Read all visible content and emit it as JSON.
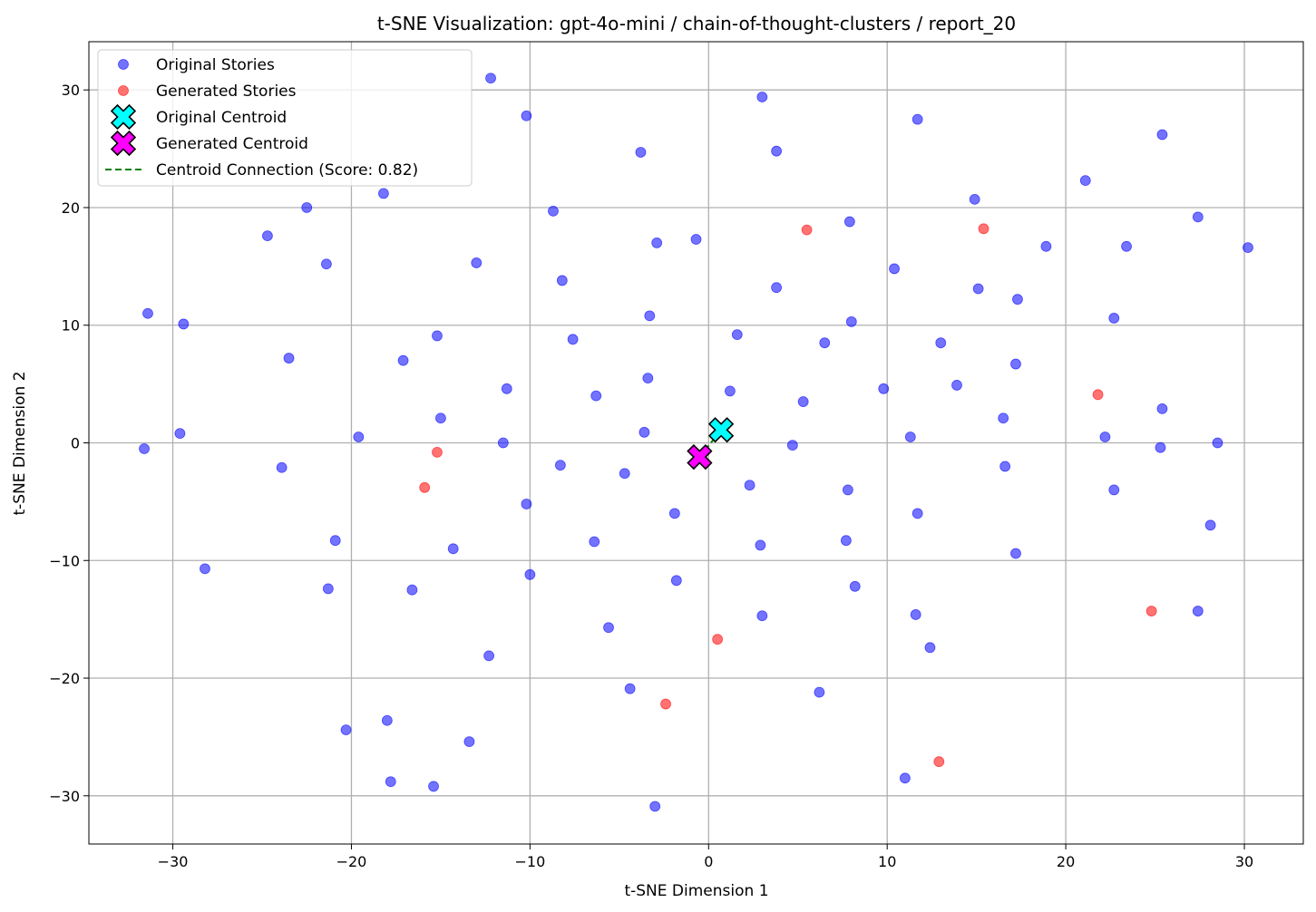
{
  "chart_data": {
    "type": "scatter",
    "title": "t-SNE Visualization: gpt-4o-mini / chain-of-thought-clusters / report_20",
    "xlabel": "t-SNE Dimension 1",
    "ylabel": "t-SNE Dimension 2",
    "xlim": [
      -34.7,
      33.3
    ],
    "ylim": [
      -34.1,
      34.1
    ],
    "xticks": [
      -30,
      -20,
      -10,
      0,
      10,
      20,
      30
    ],
    "yticks": [
      -30,
      -20,
      -10,
      0,
      10,
      20,
      30
    ],
    "xtick_labels": [
      "−30",
      "−20",
      "−10",
      "0",
      "10",
      "20",
      "30"
    ],
    "ytick_labels": [
      "−30",
      "−20",
      "−10",
      "0",
      "10",
      "20",
      "30"
    ],
    "grid": true,
    "legend_position": "top-left",
    "series": [
      {
        "name": "Original Stories",
        "color": "#0000ff",
        "points": [
          [
            -12.2,
            31.0
          ],
          [
            3.0,
            29.4
          ],
          [
            -10.2,
            27.8
          ],
          [
            11.7,
            27.5
          ],
          [
            -3.8,
            24.7
          ],
          [
            3.8,
            24.8
          ],
          [
            25.4,
            26.2
          ],
          [
            21.1,
            22.3
          ],
          [
            -18.2,
            21.2
          ],
          [
            14.9,
            20.7
          ],
          [
            -22.5,
            20.0
          ],
          [
            -8.7,
            19.7
          ],
          [
            7.9,
            18.8
          ],
          [
            27.4,
            19.2
          ],
          [
            -24.7,
            17.6
          ],
          [
            -2.9,
            17.0
          ],
          [
            -0.7,
            17.3
          ],
          [
            18.9,
            16.7
          ],
          [
            23.4,
            16.7
          ],
          [
            30.2,
            16.6
          ],
          [
            -21.4,
            15.2
          ],
          [
            -13.0,
            15.3
          ],
          [
            10.4,
            14.8
          ],
          [
            -8.2,
            13.8
          ],
          [
            3.8,
            13.2
          ],
          [
            15.1,
            13.1
          ],
          [
            17.3,
            12.2
          ],
          [
            -31.4,
            11.0
          ],
          [
            -29.4,
            10.1
          ],
          [
            -3.3,
            10.8
          ],
          [
            8.0,
            10.3
          ],
          [
            22.7,
            10.6
          ],
          [
            -15.2,
            9.1
          ],
          [
            -7.6,
            8.8
          ],
          [
            1.6,
            9.2
          ],
          [
            6.5,
            8.5
          ],
          [
            13.0,
            8.5
          ],
          [
            -23.5,
            7.2
          ],
          [
            -17.1,
            7.0
          ],
          [
            17.2,
            6.7
          ],
          [
            -11.3,
            4.6
          ],
          [
            -6.3,
            4.0
          ],
          [
            -3.4,
            5.5
          ],
          [
            1.2,
            4.4
          ],
          [
            5.3,
            3.5
          ],
          [
            9.8,
            4.6
          ],
          [
            13.9,
            4.9
          ],
          [
            -15.0,
            2.1
          ],
          [
            16.5,
            2.1
          ],
          [
            25.4,
            2.9
          ],
          [
            -29.6,
            0.8
          ],
          [
            -19.6,
            0.5
          ],
          [
            -11.5,
            0.0
          ],
          [
            -3.6,
            0.9
          ],
          [
            4.7,
            -0.2
          ],
          [
            11.3,
            0.5
          ],
          [
            22.2,
            0.5
          ],
          [
            25.3,
            -0.4
          ],
          [
            28.5,
            0.0
          ],
          [
            -31.6,
            -0.5
          ],
          [
            -23.9,
            -2.1
          ],
          [
            -8.3,
            -1.9
          ],
          [
            -4.7,
            -2.6
          ],
          [
            2.3,
            -3.6
          ],
          [
            7.8,
            -4.0
          ],
          [
            16.6,
            -2.0
          ],
          [
            22.7,
            -4.0
          ],
          [
            -10.2,
            -5.2
          ],
          [
            -1.9,
            -6.0
          ],
          [
            11.7,
            -6.0
          ],
          [
            28.1,
            -7.0
          ],
          [
            -20.9,
            -8.3
          ],
          [
            -14.3,
            -9.0
          ],
          [
            -6.4,
            -8.4
          ],
          [
            2.9,
            -8.7
          ],
          [
            7.7,
            -8.3
          ],
          [
            17.2,
            -9.4
          ],
          [
            -28.2,
            -10.7
          ],
          [
            -10.0,
            -11.2
          ],
          [
            -1.8,
            -11.7
          ],
          [
            -21.3,
            -12.4
          ],
          [
            -16.6,
            -12.5
          ],
          [
            8.2,
            -12.2
          ],
          [
            -5.6,
            -15.7
          ],
          [
            3.0,
            -14.7
          ],
          [
            11.6,
            -14.6
          ],
          [
            27.4,
            -14.3
          ],
          [
            -12.3,
            -18.1
          ],
          [
            12.4,
            -17.4
          ],
          [
            -4.4,
            -20.9
          ],
          [
            6.2,
            -21.2
          ],
          [
            -20.3,
            -24.4
          ],
          [
            -18.0,
            -23.6
          ],
          [
            -13.4,
            -25.4
          ],
          [
            -17.8,
            -28.8
          ],
          [
            -15.4,
            -29.2
          ],
          [
            -3.0,
            -30.9
          ],
          [
            11.0,
            -28.5
          ]
        ]
      },
      {
        "name": "Generated Stories",
        "color": "#ff0000",
        "points": [
          [
            5.5,
            18.1
          ],
          [
            15.4,
            18.2
          ],
          [
            21.8,
            4.1
          ],
          [
            -15.2,
            -0.8
          ],
          [
            -15.9,
            -3.8
          ],
          [
            0.5,
            -16.7
          ],
          [
            -2.4,
            -22.2
          ],
          [
            24.8,
            -14.3
          ],
          [
            12.9,
            -27.1
          ]
        ]
      }
    ],
    "centroids": [
      {
        "name": "Original Centroid",
        "color": "#00ffff",
        "point": [
          0.7,
          1.1
        ]
      },
      {
        "name": "Generated Centroid",
        "color": "#ff00ff",
        "point": [
          -0.5,
          -1.2
        ]
      }
    ],
    "connection": {
      "name": "Centroid Connection (Score: 0.82)",
      "color": "#008000",
      "style": "dashed"
    }
  }
}
